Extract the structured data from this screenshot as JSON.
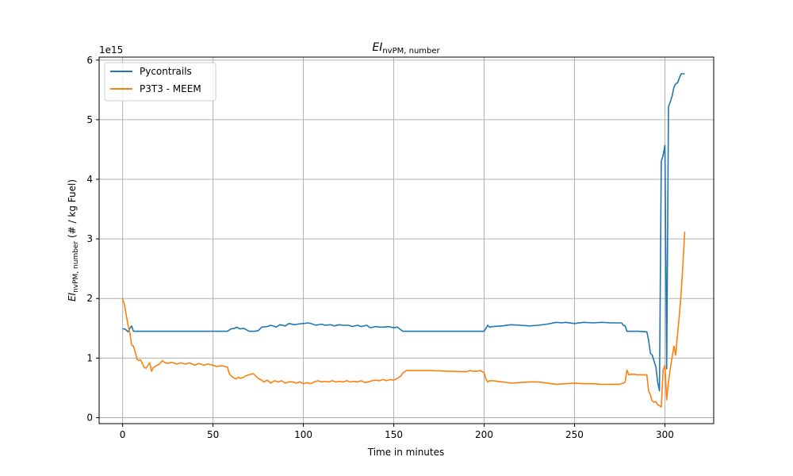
{
  "chart_data": {
    "type": "line",
    "title": "EI_nvPM, number",
    "title_main": "EI",
    "title_sub": "nvPM, number",
    "xlabel": "Time in minutes",
    "ylabel_main": "EI",
    "ylabel_sub": "nvPM, number",
    "ylabel_suffix": " (# / kg Fuel)",
    "y_offset_label": "1e15",
    "xlim": [
      -13,
      327
    ],
    "ylim": [
      -0.1,
      6.05
    ],
    "xticks": [
      0,
      50,
      100,
      150,
      200,
      250,
      300
    ],
    "xtick_labels": [
      "0",
      "50",
      "100",
      "150",
      "200",
      "250",
      "300"
    ],
    "yticks": [
      0,
      1,
      2,
      3,
      4,
      5,
      6
    ],
    "ytick_labels": [
      "0",
      "1",
      "2",
      "3",
      "4",
      "5",
      "6"
    ],
    "grid": true,
    "legend_position": "upper-left",
    "series": [
      {
        "name": "Pycontrails",
        "color": "#1f77b4",
        "x": [
          0,
          1,
          2,
          3,
          4,
          5,
          6,
          7,
          10,
          20,
          40,
          58,
          60,
          62,
          63,
          65,
          67,
          70,
          73,
          75,
          77,
          80,
          82,
          85,
          87,
          90,
          92,
          95,
          97,
          100,
          103,
          105,
          107,
          110,
          112,
          115,
          117,
          120,
          122,
          125,
          127,
          130,
          132,
          135,
          137,
          140,
          142,
          145,
          147,
          150,
          152,
          155,
          160,
          170,
          180,
          190,
          200,
          201,
          202,
          203,
          205,
          210,
          215,
          220,
          225,
          230,
          235,
          240,
          243,
          245,
          250,
          255,
          260,
          265,
          270,
          275,
          276,
          277,
          278,
          279,
          280,
          285,
          290,
          291,
          292,
          293,
          294,
          295,
          296,
          297,
          298,
          299,
          300,
          301,
          302,
          303,
          304,
          305,
          306,
          307,
          308,
          309,
          310,
          311
        ],
        "y": [
          1.49,
          1.49,
          1.47,
          1.44,
          1.5,
          1.54,
          1.45,
          1.45,
          1.45,
          1.45,
          1.45,
          1.45,
          1.49,
          1.5,
          1.52,
          1.49,
          1.5,
          1.45,
          1.45,
          1.46,
          1.52,
          1.53,
          1.55,
          1.52,
          1.56,
          1.54,
          1.58,
          1.56,
          1.57,
          1.58,
          1.59,
          1.57,
          1.55,
          1.57,
          1.55,
          1.56,
          1.54,
          1.56,
          1.55,
          1.55,
          1.53,
          1.55,
          1.53,
          1.55,
          1.51,
          1.53,
          1.52,
          1.52,
          1.53,
          1.51,
          1.52,
          1.45,
          1.45,
          1.45,
          1.45,
          1.45,
          1.45,
          1.5,
          1.55,
          1.52,
          1.53,
          1.54,
          1.56,
          1.55,
          1.54,
          1.55,
          1.57,
          1.6,
          1.59,
          1.6,
          1.58,
          1.6,
          1.59,
          1.6,
          1.59,
          1.59,
          1.59,
          1.55,
          1.54,
          1.45,
          1.45,
          1.45,
          1.44,
          1.3,
          1.08,
          1.05,
          0.95,
          0.85,
          0.6,
          0.45,
          4.3,
          4.4,
          4.57,
          0.82,
          5.22,
          5.3,
          5.4,
          5.55,
          5.6,
          5.62,
          5.7,
          5.77,
          5.77,
          5.77
        ]
      },
      {
        "name": "P3T3 - MEEM",
        "color": "#ff7f0e",
        "x": [
          0,
          1,
          2,
          3,
          4,
          5,
          6,
          7,
          8,
          9,
          10,
          11,
          12,
          13,
          14,
          15,
          16,
          17,
          18,
          19,
          20,
          21,
          22,
          23,
          25,
          27,
          30,
          32,
          35,
          37,
          40,
          42,
          45,
          47,
          50,
          52,
          55,
          58,
          59,
          60,
          61,
          62,
          63,
          64,
          65,
          66,
          67,
          68,
          70,
          72,
          73,
          75,
          77,
          78,
          80,
          82,
          84,
          86,
          88,
          90,
          92,
          94,
          96,
          98,
          100,
          102,
          104,
          106,
          108,
          110,
          112,
          114,
          116,
          118,
          120,
          122,
          124,
          126,
          128,
          130,
          132,
          134,
          136,
          138,
          140,
          142,
          144,
          146,
          148,
          150,
          152,
          154,
          155,
          156,
          157,
          158,
          160,
          170,
          180,
          190,
          192,
          194,
          196,
          198,
          200,
          201,
          202,
          203,
          205,
          210,
          215,
          220,
          225,
          230,
          235,
          240,
          245,
          250,
          255,
          260,
          265,
          270,
          275,
          277,
          278,
          279,
          280,
          282,
          285,
          288,
          290,
          291,
          292,
          293,
          294,
          295,
          296,
          297,
          298,
          299,
          300,
          301,
          302,
          303,
          304,
          305,
          306,
          307,
          308,
          309,
          310,
          311
        ],
        "y": [
          2.0,
          1.9,
          1.72,
          1.55,
          1.42,
          1.22,
          1.2,
          1.1,
          0.98,
          0.96,
          0.97,
          0.9,
          0.84,
          0.83,
          0.88,
          0.92,
          0.78,
          0.84,
          0.86,
          0.88,
          0.89,
          0.92,
          0.96,
          0.93,
          0.91,
          0.93,
          0.9,
          0.92,
          0.9,
          0.92,
          0.88,
          0.91,
          0.88,
          0.9,
          0.88,
          0.86,
          0.87,
          0.85,
          0.74,
          0.7,
          0.68,
          0.66,
          0.65,
          0.68,
          0.66,
          0.67,
          0.68,
          0.7,
          0.72,
          0.74,
          0.72,
          0.66,
          0.63,
          0.6,
          0.63,
          0.58,
          0.62,
          0.6,
          0.62,
          0.58,
          0.6,
          0.6,
          0.58,
          0.6,
          0.57,
          0.59,
          0.57,
          0.6,
          0.62,
          0.6,
          0.61,
          0.6,
          0.62,
          0.6,
          0.61,
          0.6,
          0.62,
          0.6,
          0.61,
          0.6,
          0.62,
          0.59,
          0.6,
          0.62,
          0.63,
          0.62,
          0.64,
          0.62,
          0.64,
          0.63,
          0.66,
          0.7,
          0.75,
          0.77,
          0.79,
          0.79,
          0.79,
          0.79,
          0.78,
          0.77,
          0.79,
          0.78,
          0.78,
          0.79,
          0.75,
          0.65,
          0.6,
          0.62,
          0.62,
          0.6,
          0.58,
          0.59,
          0.6,
          0.6,
          0.58,
          0.56,
          0.57,
          0.58,
          0.57,
          0.57,
          0.56,
          0.56,
          0.56,
          0.58,
          0.6,
          0.8,
          0.72,
          0.73,
          0.72,
          0.72,
          0.72,
          0.45,
          0.38,
          0.28,
          0.26,
          0.27,
          0.22,
          0.2,
          0.18,
          0.8,
          0.88,
          0.3,
          0.6,
          0.82,
          1.02,
          1.2,
          1.05,
          1.4,
          1.72,
          2.1,
          2.6,
          3.12
        ]
      }
    ]
  }
}
